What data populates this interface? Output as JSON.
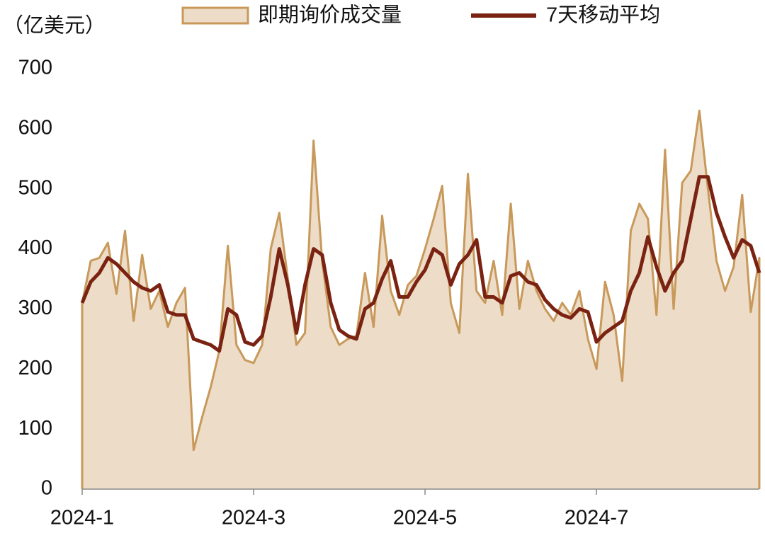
{
  "chart_data": {
    "type": "area_line",
    "unit_label": "（亿美元）",
    "categories": [
      "2024-1",
      null,
      null,
      null,
      null,
      null,
      null,
      null,
      null,
      null,
      null,
      null,
      null,
      null,
      null,
      null,
      null,
      null,
      null,
      null,
      "2024-3",
      null,
      null,
      null,
      null,
      null,
      null,
      null,
      null,
      null,
      null,
      null,
      null,
      null,
      null,
      null,
      null,
      null,
      null,
      null,
      "2024-5",
      null,
      null,
      null,
      null,
      null,
      null,
      null,
      null,
      null,
      null,
      null,
      null,
      null,
      null,
      null,
      null,
      null,
      null,
      null,
      "2024-7",
      null,
      null,
      null,
      null,
      null,
      null,
      null,
      null,
      null,
      null,
      null,
      null,
      null,
      null,
      null,
      null,
      null,
      null,
      null
    ],
    "series": [
      {
        "name": "即期询价成交量",
        "kind": "area",
        "color": "#c8995a",
        "fill": "#ecdcc8",
        "values": [
          310,
          380,
          385,
          410,
          325,
          430,
          280,
          390,
          300,
          330,
          270,
          310,
          335,
          65,
          120,
          170,
          230,
          405,
          240,
          215,
          210,
          240,
          400,
          460,
          350,
          240,
          260,
          580,
          380,
          270,
          240,
          250,
          255,
          360,
          270,
          455,
          330,
          290,
          340,
          355,
          400,
          450,
          505,
          310,
          260,
          525,
          330,
          310,
          380,
          290,
          475,
          300,
          380,
          330,
          300,
          280,
          310,
          290,
          330,
          250,
          200,
          345,
          290,
          180,
          430,
          475,
          450,
          290,
          565,
          300,
          510,
          530,
          630,
          500,
          380,
          330,
          370,
          490,
          295,
          385
        ]
      },
      {
        "name": "7天移动平均",
        "kind": "line",
        "color": "#7b2312",
        "values": [
          310,
          345,
          360,
          385,
          375,
          360,
          345,
          335,
          330,
          340,
          295,
          290,
          290,
          250,
          245,
          240,
          230,
          300,
          290,
          245,
          240,
          255,
          320,
          400,
          340,
          260,
          340,
          400,
          390,
          310,
          265,
          255,
          250,
          300,
          310,
          350,
          380,
          320,
          320,
          345,
          365,
          400,
          390,
          340,
          375,
          390,
          415,
          320,
          320,
          310,
          355,
          360,
          345,
          340,
          315,
          300,
          290,
          285,
          300,
          295,
          245,
          260,
          270,
          280,
          330,
          360,
          420,
          370,
          330,
          360,
          380,
          450,
          520,
          520,
          460,
          420,
          385,
          415,
          405,
          360
        ]
      }
    ],
    "ylim": [
      0,
      700
    ],
    "yticks": [
      0,
      100,
      200,
      300,
      400,
      500,
      600,
      700
    ],
    "grid": false
  }
}
